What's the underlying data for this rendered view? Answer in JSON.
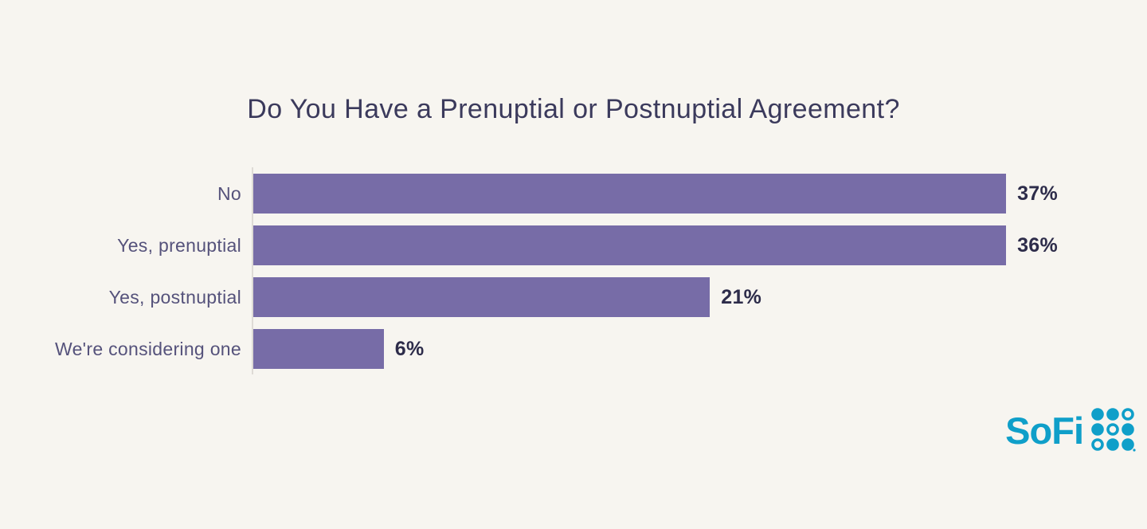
{
  "chart_data": {
    "type": "bar",
    "orientation": "horizontal",
    "title": "Do You Have a Prenuptial or Postnuptial Agreement?",
    "categories": [
      "No",
      "Yes, prenuptial",
      "Yes, postnuptial",
      "We're considering one"
    ],
    "values": [
      37,
      36,
      21,
      6
    ],
    "value_labels": [
      "37%",
      "36%",
      "21%",
      "6%"
    ],
    "xlim": [
      0,
      37
    ],
    "grid": false,
    "legend": false,
    "bar_color": "#776ca7",
    "data_label_position": "right-of-bar"
  },
  "branding": {
    "logo_text": "SoFi",
    "logo_color": "#0f9fc9",
    "dot_pattern": [
      [
        "filled",
        "filled",
        "ring"
      ],
      [
        "filled",
        "ring",
        "filled"
      ],
      [
        "ring",
        "filled",
        "filled"
      ]
    ]
  },
  "colors": {
    "background": "#f7f5f0",
    "title_text": "#3b3a5c",
    "category_text": "#55527b",
    "value_text": "#2d2c4a",
    "axis_line": "#dedbd6"
  }
}
